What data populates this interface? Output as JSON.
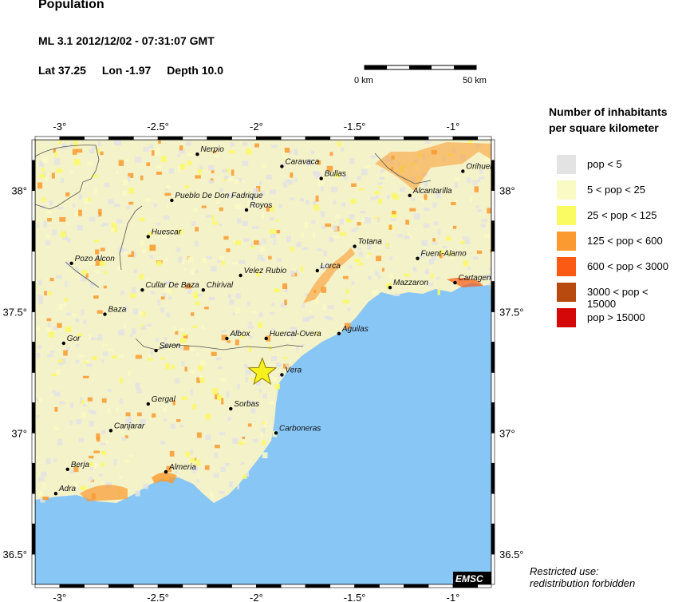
{
  "header": {
    "title": "Population",
    "event": "ML 3.1  2012/12/02 - 07:31:07 GMT",
    "lat": "Lat 37.25",
    "lon": "Lon  -1.97",
    "depth": "Depth  10.0"
  },
  "scale_bar": {
    "start_label": "0 km",
    "end_label": "50 km"
  },
  "axes": {
    "lon_ticks": [
      "-3°",
      "-2.5°",
      "-2°",
      "-1.5°",
      "-1°"
    ],
    "lat_ticks": [
      "38°",
      "37.5°",
      "37°",
      "36.5°"
    ]
  },
  "legend": {
    "title_line1": "Number of inhabitants",
    "title_line2": "per square kilometer",
    "items": [
      {
        "label": "pop < 5",
        "color": "#e3e3e3"
      },
      {
        "label": "5 < pop < 25",
        "color": "#fafac4"
      },
      {
        "label": "25 < pop < 125",
        "color": "#fafa62"
      },
      {
        "label": "125 < pop < 600",
        "color": "#fa9a30"
      },
      {
        "label": "600 < pop < 3000",
        "color": "#fa5a14"
      },
      {
        "label": "3000 < pop < 15000",
        "color": "#b84a10"
      },
      {
        "label": "pop > 15000",
        "color": "#d40808"
      }
    ]
  },
  "map": {
    "epicenter": {
      "lat": 37.25,
      "lon": -1.97
    },
    "sea_color": "#88c6f6",
    "cities": [
      {
        "name": "Nerpio",
        "lon": -2.3,
        "lat": 38.15
      },
      {
        "name": "Caravaca",
        "lon": -1.87,
        "lat": 38.1
      },
      {
        "name": "Bullas",
        "lon": -1.67,
        "lat": 38.05
      },
      {
        "name": "Orihuela",
        "lon": -0.95,
        "lat": 38.08
      },
      {
        "name": "Alcantarilla",
        "lon": -1.22,
        "lat": 37.98
      },
      {
        "name": "Pueblo De Don Fadrique",
        "lon": -2.43,
        "lat": 37.96
      },
      {
        "name": "Royos",
        "lon": -2.05,
        "lat": 37.92
      },
      {
        "name": "Huescar",
        "lon": -2.55,
        "lat": 37.81
      },
      {
        "name": "Totana",
        "lon": -1.5,
        "lat": 37.77
      },
      {
        "name": "Fuent-Alamo",
        "lon": -1.18,
        "lat": 37.72
      },
      {
        "name": "Pozo Alcon",
        "lon": -2.94,
        "lat": 37.7
      },
      {
        "name": "Lorca",
        "lon": -1.69,
        "lat": 37.67
      },
      {
        "name": "Velez Rubio",
        "lon": -2.08,
        "lat": 37.65
      },
      {
        "name": "Cartagena",
        "lon": -0.99,
        "lat": 37.62
      },
      {
        "name": "Mazzaron",
        "lon": -1.32,
        "lat": 37.6
      },
      {
        "name": "Cullar De Baza",
        "lon": -2.58,
        "lat": 37.59
      },
      {
        "name": "Chirival",
        "lon": -2.27,
        "lat": 37.59
      },
      {
        "name": "Baza",
        "lon": -2.77,
        "lat": 37.49
      },
      {
        "name": "Aguilas",
        "lon": -1.58,
        "lat": 37.41
      },
      {
        "name": "Albox",
        "lon": -2.15,
        "lat": 37.39
      },
      {
        "name": "Huercal-Overa",
        "lon": -1.95,
        "lat": 37.39
      },
      {
        "name": "Gor",
        "lon": -2.98,
        "lat": 37.37
      },
      {
        "name": "Seron",
        "lon": -2.51,
        "lat": 37.34
      },
      {
        "name": "Vera",
        "lon": -1.87,
        "lat": 37.24
      },
      {
        "name": "Gergal",
        "lon": -2.55,
        "lat": 37.12
      },
      {
        "name": "Sorbas",
        "lon": -2.13,
        "lat": 37.1
      },
      {
        "name": "Canjarar",
        "lon": -2.74,
        "lat": 37.01
      },
      {
        "name": "Carboneras",
        "lon": -1.9,
        "lat": 37.0
      },
      {
        "name": "Berja",
        "lon": -2.96,
        "lat": 36.85
      },
      {
        "name": "Almeria",
        "lon": -2.46,
        "lat": 36.84
      },
      {
        "name": "Adra",
        "lon": -3.02,
        "lat": 36.75
      }
    ],
    "logo": "EMSC"
  },
  "footer": {
    "restricted": "Restricted use:",
    "redistribution": "redistribution forbidden"
  }
}
